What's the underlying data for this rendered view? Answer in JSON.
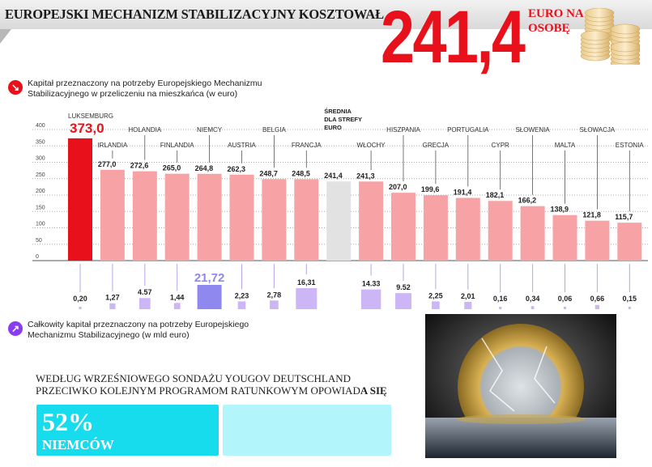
{
  "header": {
    "title": "EUROPEJSKI MECHANIZM STABILIZACYJNY KOSZTOWAŁ",
    "big_value": "241,4",
    "unit_line1": "EURO NA",
    "unit_line2": "OSOBĘ"
  },
  "colors": {
    "highlight": "#e8101a",
    "bar": "#f7a3a6",
    "average": "#e2e2e2",
    "total": "#cdb6f5",
    "total_highlight": "#8f88ee",
    "poll": "#16dcee",
    "poll_rest": "#b2f5fb"
  },
  "section1": {
    "icon": "arrow-down-right-icon",
    "text_line1": "Kapitał przeznaczony na potrzeby Europejskiego Mechanizmu",
    "text_line2": "Stabilizacyjnego w przeliczeniu na mieszkańca (w euro)"
  },
  "section2": {
    "icon": "arrow-up-right-icon",
    "text_line1": "Całkowity kapitał przeznaczony na potrzeby Europejskiego",
    "text_line2": "Mechanizmu Stabilizacyjnego (w mld euro)"
  },
  "chart_data": {
    "type": "bar",
    "ylim": [
      0,
      400
    ],
    "yticks": [
      "0",
      "50",
      "100",
      "150",
      "200",
      "250",
      "300",
      "350",
      "400"
    ],
    "grid": true,
    "categories": [
      "LUKSEMBURG",
      "IRLANDIA",
      "HOLANDIA",
      "FINLANDIA",
      "NIEMCY",
      "AUSTRIA",
      "BELGIA",
      "FRANCJA",
      "ŚREDNIA DLA STREFY EURO",
      "WŁOCHY",
      "HISZPANIA",
      "GRECJA",
      "PORTUGALIA",
      "CYPR",
      "SŁOWENIA",
      "MALTA",
      "SŁOWACJA",
      "ESTONIA"
    ],
    "series": [
      {
        "values": [
          373.0,
          277.0,
          272.6,
          265.0,
          264.8,
          262.3,
          248.7,
          248.5,
          241.4,
          241.3,
          207.0,
          199.6,
          191.4,
          182.1,
          166.2,
          138.9,
          121.8,
          115.7
        ],
        "labels": [
          "373,0",
          "277,0",
          "272,6",
          "265,0",
          "264,8",
          "262,3",
          "248,7",
          "248,5",
          "241,4",
          "241,3",
          "207,0",
          "199,6",
          "191,4",
          "182,1",
          "166,2",
          "138,9",
          "121,8",
          "115,7"
        ]
      },
      {
        "values": [
          0.2,
          1.27,
          4.57,
          1.44,
          21.72,
          2.23,
          2.78,
          16.31,
          null,
          14.33,
          9.52,
          2.25,
          2.01,
          0.16,
          0.34,
          0.06,
          0.66,
          0.15
        ],
        "labels": [
          "0,20",
          "1,27",
          "4.57",
          "1,44",
          "21,72",
          "2,23",
          "2,78",
          "16,31",
          "",
          "14.33",
          "9.52",
          "2,25",
          "2,01",
          "0,16",
          "0,34",
          "0,06",
          "0,66",
          "0,15"
        ]
      }
    ]
  },
  "poll": {
    "line1": "WEDŁUG WRZEŚNIOWEGO SONDAŻU YOUGOV DEUTSCHLAND",
    "line2a": "PRZECIWKO KOLEJNYM PROGRAMOM RATUNKOWYM OPOWIAD",
    "line2b": "A SIĘ",
    "percent": "52%",
    "percent_value": 52,
    "who": "NIEMCÓW"
  }
}
